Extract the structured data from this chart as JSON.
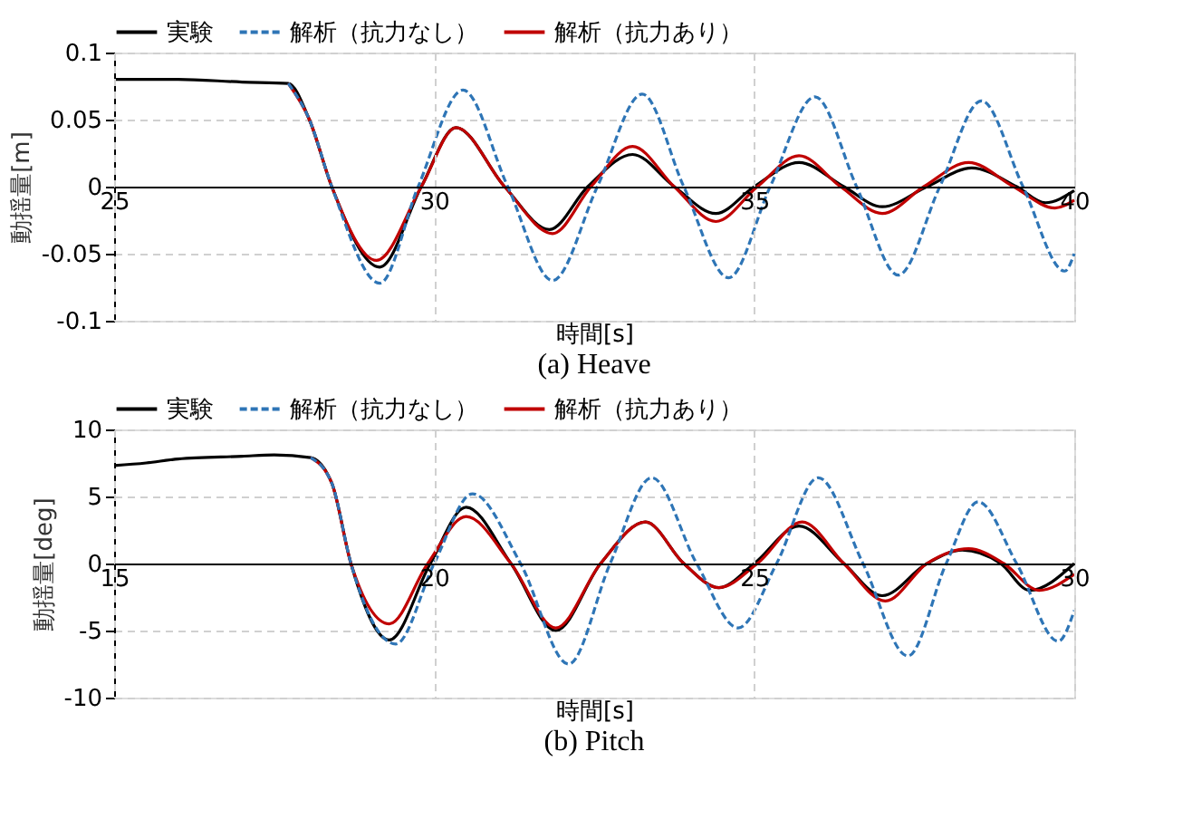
{
  "chart_data": [
    {
      "type": "line",
      "title": "(a) Heave",
      "xlabel": "時間[s]",
      "ylabel": "動揺量[m]",
      "xlim": [
        25,
        40
      ],
      "ylim": [
        -0.1,
        0.1
      ],
      "xticks": [
        25,
        30,
        35,
        40
      ],
      "yticks": [
        -0.1,
        -0.05,
        0,
        0.05,
        0.1
      ],
      "grid": true,
      "legend": "top",
      "series": [
        {
          "name": "実験",
          "color": "#000000",
          "line_style": "solid",
          "x": [
            25,
            26,
            27,
            27.72,
            28.05,
            28.4,
            29.15,
            29.8,
            30.34,
            31.1,
            31.8,
            32.4,
            33.1,
            33.75,
            34.4,
            35.0,
            35.7,
            36.4,
            37.0,
            37.7,
            38.4,
            39.1,
            39.55,
            40
          ],
          "values": [
            0.08,
            0.08,
            0.078,
            0.077,
            0.05,
            0,
            -0.06,
            0,
            0.044,
            0,
            -0.032,
            0,
            0.024,
            0,
            -0.02,
            0,
            0.018,
            0,
            -0.015,
            0,
            0.014,
            0,
            -0.012,
            -0.003
          ]
        },
        {
          "name": "解析（抗力なし）",
          "color": "#2e75b6",
          "line_style": "dashed",
          "x": [
            27.72,
            28.05,
            28.4,
            29.15,
            29.75,
            30.45,
            31.15,
            31.85,
            32.55,
            33.25,
            33.9,
            34.6,
            35.25,
            35.95,
            36.6,
            37.25,
            37.9,
            38.55,
            39.2,
            39.85,
            40
          ],
          "values": [
            0.077,
            0.05,
            0,
            -0.072,
            0,
            0.072,
            0,
            -0.07,
            0,
            0.069,
            0,
            -0.068,
            0,
            0.067,
            0,
            -0.066,
            0,
            0.064,
            0,
            -0.063,
            -0.05
          ]
        },
        {
          "name": "解析（抗力あり）",
          "color": "#c00000",
          "line_style": "solid",
          "x": [
            27.72,
            28.05,
            28.4,
            29.1,
            29.8,
            30.34,
            31.1,
            31.85,
            32.45,
            33.1,
            33.75,
            34.4,
            35.05,
            35.7,
            36.35,
            37.0,
            37.65,
            38.35,
            39.05,
            39.7,
            40
          ],
          "values": [
            0.077,
            0.05,
            0,
            -0.055,
            0,
            0.044,
            0,
            -0.035,
            0,
            0.03,
            0,
            -0.026,
            0,
            0.023,
            0,
            -0.02,
            0,
            0.018,
            0,
            -0.016,
            -0.01
          ]
        }
      ]
    },
    {
      "type": "line",
      "title": "(b) Pitch",
      "xlabel": "時間[s]",
      "ylabel": "動揺量[deg]",
      "xlim": [
        15,
        30
      ],
      "ylim": [
        -10,
        10
      ],
      "xticks": [
        15,
        20,
        25,
        30
      ],
      "yticks": [
        -10,
        -5,
        0,
        5,
        10
      ],
      "grid": true,
      "legend": "top",
      "series": [
        {
          "name": "実験",
          "color": "#000000",
          "line_style": "solid",
          "x": [
            15,
            15.5,
            16,
            17,
            17.5,
            18.07,
            18.4,
            18.7,
            19.3,
            19.94,
            20.5,
            21.2,
            21.9,
            22.6,
            23.3,
            23.9,
            24.45,
            25.0,
            25.7,
            26.4,
            27.0,
            27.7,
            28.25,
            28.85,
            29.3,
            30
          ],
          "values": [
            7.3,
            7.5,
            7.8,
            8.0,
            8.1,
            7.9,
            6,
            0,
            -5.7,
            0,
            4.2,
            0,
            -5.0,
            0,
            3.1,
            0,
            -1.8,
            0,
            2.8,
            0,
            -2.4,
            0,
            1.0,
            0,
            -2.0,
            0
          ]
        },
        {
          "name": "解析（抗力なし）",
          "color": "#2e75b6",
          "line_style": "dashed",
          "x": [
            18.07,
            18.4,
            18.7,
            19.4,
            20.0,
            20.6,
            21.35,
            22.1,
            22.75,
            23.4,
            24.1,
            24.75,
            25.35,
            26.0,
            26.7,
            27.4,
            28.0,
            28.5,
            29.1,
            29.75,
            30
          ],
          "values": [
            7.9,
            6,
            0,
            -6.0,
            0,
            5.2,
            0,
            -7.5,
            0,
            6.4,
            0,
            -4.8,
            0,
            6.4,
            0,
            -6.9,
            0,
            4.6,
            0,
            -5.8,
            -3.5
          ]
        },
        {
          "name": "解析（抗力あり）",
          "color": "#c00000",
          "line_style": "solid",
          "x": [
            18.07,
            18.4,
            18.7,
            19.3,
            19.9,
            20.5,
            21.2,
            21.9,
            22.6,
            23.3,
            23.9,
            24.45,
            25.05,
            25.75,
            26.4,
            27.05,
            27.7,
            28.35,
            28.9,
            29.45,
            30
          ],
          "values": [
            7.9,
            6,
            0,
            -4.5,
            0,
            3.5,
            0,
            -4.8,
            0,
            3.1,
            0,
            -1.8,
            0,
            3.1,
            0,
            -2.8,
            0,
            1.1,
            0,
            -2.0,
            -0.8
          ]
        }
      ]
    }
  ]
}
